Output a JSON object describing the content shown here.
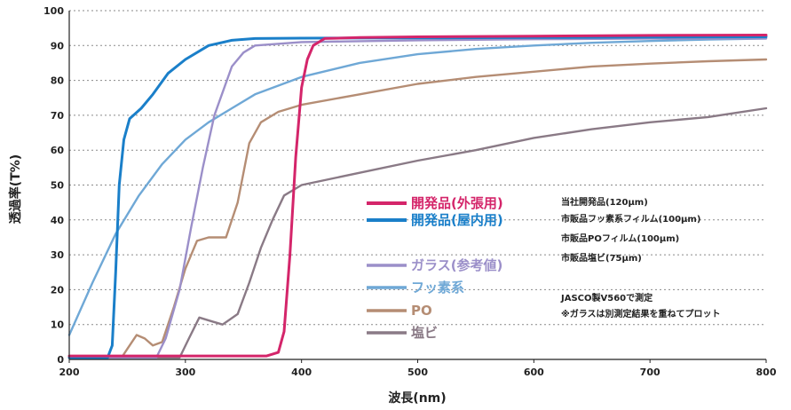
{
  "chart_data": {
    "type": "line",
    "xlabel": "波長(nm)",
    "ylabel": "透過率(T%)",
    "xlim": [
      200,
      800
    ],
    "ylim": [
      0,
      100
    ],
    "x_ticks": [
      200,
      300,
      400,
      500,
      600,
      700,
      800
    ],
    "y_ticks": [
      0,
      10,
      20,
      30,
      40,
      50,
      60,
      70,
      80,
      90,
      100
    ],
    "grid": "horizontal dotted",
    "legend_position": "center-right",
    "series": [
      {
        "name": "開発品(外張用)",
        "color": "#d4256a",
        "points": [
          [
            200,
            1
          ],
          [
            370,
            1
          ],
          [
            380,
            2
          ],
          [
            385,
            8
          ],
          [
            390,
            30
          ],
          [
            395,
            58
          ],
          [
            400,
            78
          ],
          [
            405,
            86
          ],
          [
            410,
            90
          ],
          [
            420,
            92
          ],
          [
            450,
            92.3
          ],
          [
            500,
            92.5
          ],
          [
            600,
            92.7
          ],
          [
            700,
            92.9
          ],
          [
            800,
            93
          ]
        ]
      },
      {
        "name": "開発品(屋内用)",
        "color": "#1a7fc9",
        "points": [
          [
            200,
            0.5
          ],
          [
            233,
            0.5
          ],
          [
            237,
            4
          ],
          [
            240,
            25
          ],
          [
            243,
            50
          ],
          [
            247,
            63
          ],
          [
            252,
            69
          ],
          [
            262,
            72
          ],
          [
            272,
            76
          ],
          [
            285,
            82
          ],
          [
            300,
            86
          ],
          [
            320,
            90
          ],
          [
            340,
            91.5
          ],
          [
            360,
            92
          ],
          [
            400,
            92.1
          ],
          [
            500,
            92.2
          ],
          [
            600,
            92.3
          ],
          [
            700,
            92.4
          ],
          [
            800,
            92.5
          ]
        ]
      },
      {
        "name": "ガラス(参考値)",
        "color": "#9b8fc9",
        "points": [
          [
            200,
            0.5
          ],
          [
            275,
            0.5
          ],
          [
            283,
            6
          ],
          [
            295,
            20
          ],
          [
            305,
            38
          ],
          [
            315,
            55
          ],
          [
            325,
            70
          ],
          [
            340,
            84
          ],
          [
            350,
            88
          ],
          [
            360,
            90
          ],
          [
            400,
            91
          ],
          [
            500,
            91.5
          ],
          [
            600,
            91.8
          ],
          [
            700,
            92
          ],
          [
            800,
            92
          ]
        ]
      },
      {
        "name": "フッ素系",
        "color": "#6fa8d6",
        "points": [
          [
            200,
            7
          ],
          [
            220,
            22
          ],
          [
            240,
            36
          ],
          [
            260,
            47
          ],
          [
            280,
            56
          ],
          [
            300,
            63
          ],
          [
            320,
            68
          ],
          [
            340,
            72
          ],
          [
            360,
            76
          ],
          [
            380,
            78.5
          ],
          [
            400,
            81
          ],
          [
            450,
            85
          ],
          [
            500,
            87.5
          ],
          [
            550,
            89
          ],
          [
            600,
            90
          ],
          [
            650,
            90.8
          ],
          [
            700,
            91.3
          ],
          [
            750,
            91.7
          ],
          [
            800,
            92
          ]
        ]
      },
      {
        "name": "PO",
        "color": "#b58d74",
        "points": [
          [
            200,
            0.5
          ],
          [
            245,
            0.5
          ],
          [
            250,
            3
          ],
          [
            258,
            7
          ],
          [
            265,
            6
          ],
          [
            272,
            4
          ],
          [
            280,
            5
          ],
          [
            290,
            15
          ],
          [
            300,
            26
          ],
          [
            310,
            34
          ],
          [
            320,
            35
          ],
          [
            335,
            35
          ],
          [
            345,
            45
          ],
          [
            355,
            62
          ],
          [
            365,
            68
          ],
          [
            380,
            71
          ],
          [
            400,
            73
          ],
          [
            450,
            76
          ],
          [
            500,
            79
          ],
          [
            550,
            81
          ],
          [
            600,
            82.5
          ],
          [
            650,
            84
          ],
          [
            700,
            84.8
          ],
          [
            750,
            85.5
          ],
          [
            800,
            86
          ]
        ]
      },
      {
        "name": "塩ビ",
        "color": "#8a7a86",
        "points": [
          [
            200,
            0.5
          ],
          [
            295,
            0.5
          ],
          [
            303,
            6
          ],
          [
            312,
            12
          ],
          [
            322,
            11
          ],
          [
            332,
            10
          ],
          [
            345,
            13
          ],
          [
            355,
            22
          ],
          [
            365,
            32
          ],
          [
            375,
            40
          ],
          [
            385,
            47
          ],
          [
            400,
            50
          ],
          [
            450,
            53.5
          ],
          [
            500,
            57
          ],
          [
            550,
            60
          ],
          [
            600,
            63.5
          ],
          [
            650,
            66
          ],
          [
            700,
            68
          ],
          [
            750,
            69.5
          ],
          [
            800,
            72
          ]
        ]
      }
    ],
    "annotations": [
      "当社開発品(120μm)",
      "市販品フッ素系フィルム(100μm)",
      "市販品POフィルム(100μm)",
      "市販品塩ビ(75μm)",
      "JASCO製V560で測定",
      "※ガラスは別測定結果を重ねてプロット"
    ]
  }
}
